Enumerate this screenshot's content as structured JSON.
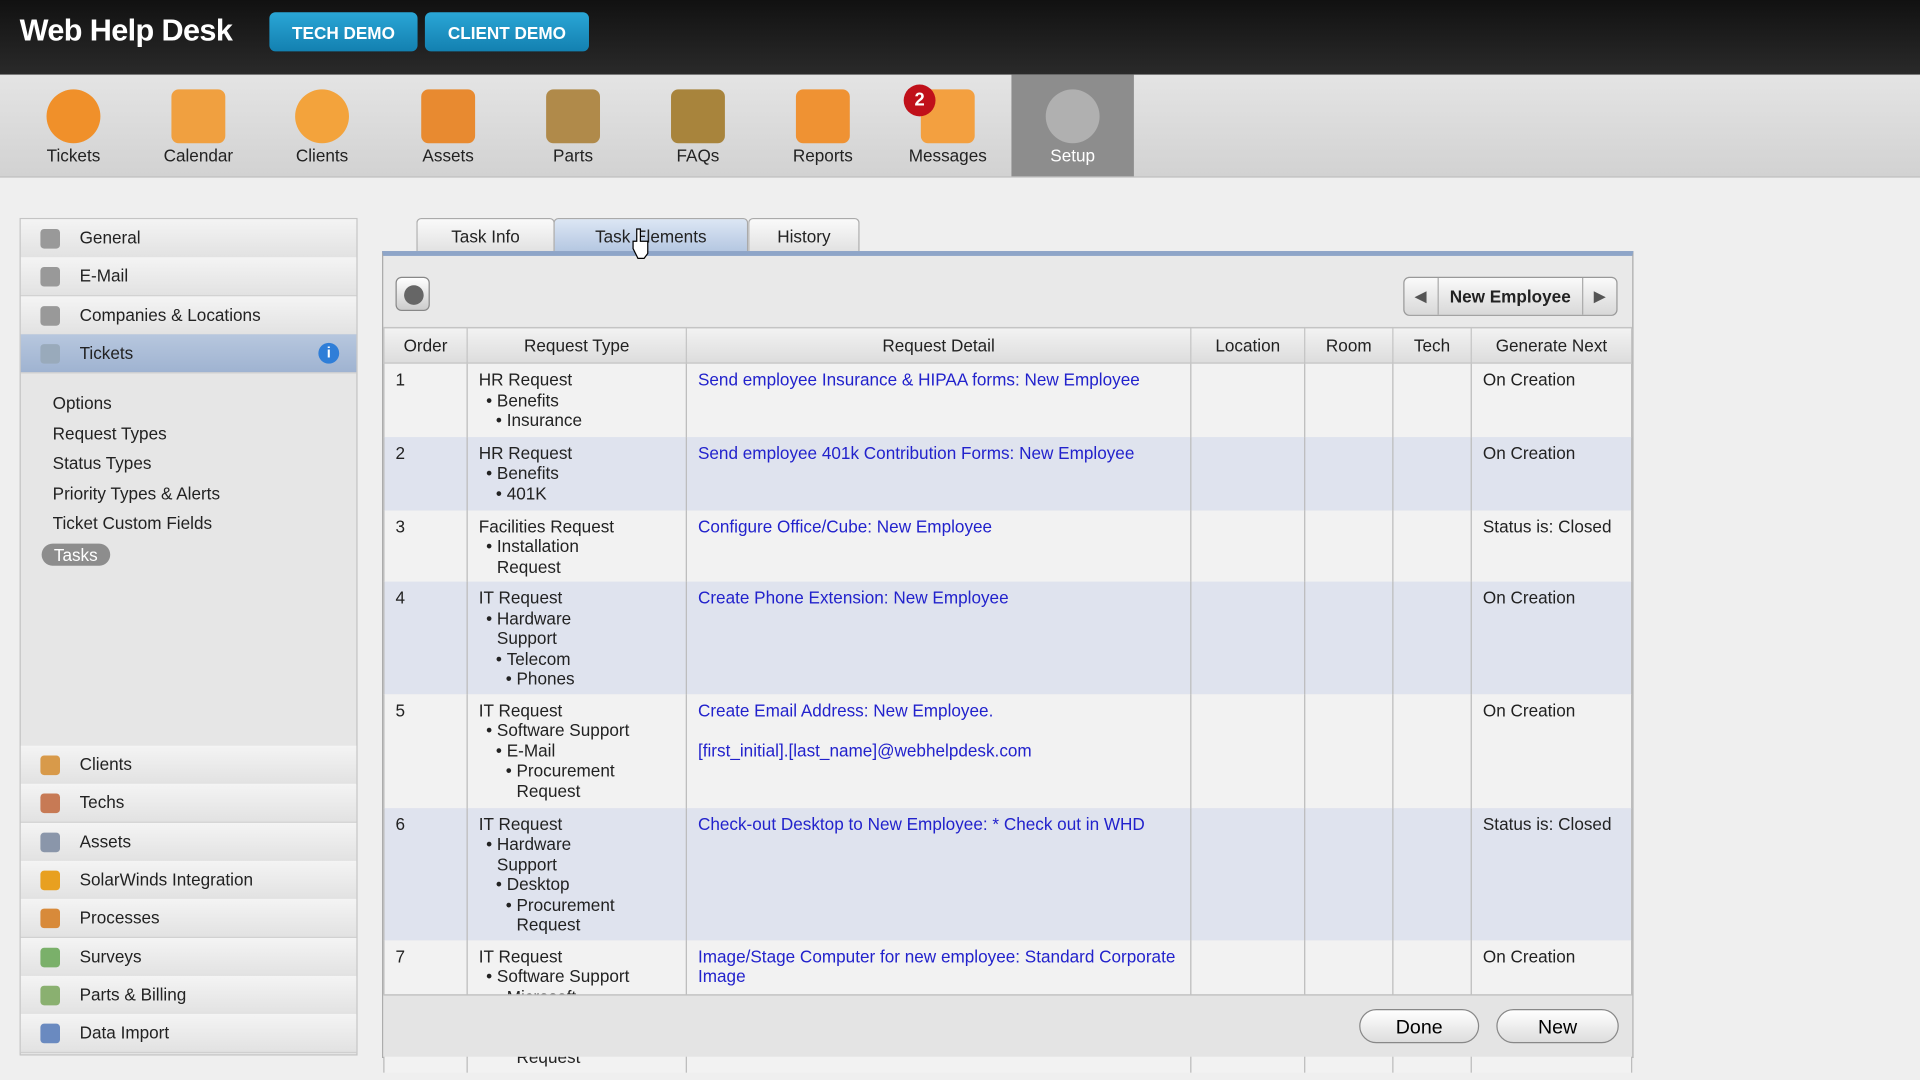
{
  "app": {
    "title": "Web Help Desk",
    "tech_demo": "TECH DEMO",
    "client_demo": "CLIENT DEMO"
  },
  "nav": [
    {
      "label": "Tickets",
      "icon": "lifebuoy-icon",
      "color": "#f0902a"
    },
    {
      "label": "Calendar",
      "icon": "calendar-icon",
      "color": "#f0a040"
    },
    {
      "label": "Clients",
      "icon": "person-icon",
      "color": "#f3a33c"
    },
    {
      "label": "Assets",
      "icon": "monitor-icon",
      "color": "#e88a30"
    },
    {
      "label": "Parts",
      "icon": "box-icon",
      "color": "#b08a4a"
    },
    {
      "label": "FAQs",
      "icon": "book-icon",
      "color": "#a8843c"
    },
    {
      "label": "Reports",
      "icon": "report-icon",
      "color": "#ef9233"
    },
    {
      "label": "Messages",
      "icon": "message-icon",
      "color": "#f3a040",
      "badge": "2"
    },
    {
      "label": "Setup",
      "icon": "gear-icon",
      "color": "#b0b0b0",
      "active": true
    }
  ],
  "sidebar": {
    "top": [
      {
        "label": "General",
        "icon": "gear-icon"
      },
      {
        "label": "E-Mail",
        "icon": "envelope-icon"
      },
      {
        "label": "Companies & Locations",
        "icon": "building-icon"
      },
      {
        "label": "Tickets",
        "icon": "tag-icon",
        "selected": true
      }
    ],
    "sub": [
      "Options",
      "Request Types",
      "Status Types",
      "Priority Types & Alerts",
      "Ticket Custom Fields",
      "Tasks"
    ],
    "sub_selected": "Tasks",
    "bottom": [
      {
        "label": "Clients",
        "icon": "clients-icon"
      },
      {
        "label": "Techs",
        "icon": "tech-icon"
      },
      {
        "label": "Assets",
        "icon": "assets-icon"
      },
      {
        "label": "SolarWinds Integration",
        "icon": "solarwinds-icon"
      },
      {
        "label": "Processes",
        "icon": "processes-icon"
      },
      {
        "label": "Surveys",
        "icon": "surveys-icon"
      },
      {
        "label": "Parts & Billing",
        "icon": "parts-billing-icon"
      },
      {
        "label": "Data Import",
        "icon": "data-import-icon"
      }
    ]
  },
  "tabs": [
    "Task Info",
    "Task Elements",
    "History"
  ],
  "active_tab": "Task Elements",
  "pager": {
    "label": "New Employee"
  },
  "table": {
    "columns": [
      "Order",
      "Request Type",
      "Request Detail",
      "Location",
      "Room",
      "Tech",
      "Generate Next"
    ],
    "rows": [
      {
        "order": "1",
        "type": [
          [
            0,
            "HR Request"
          ],
          [
            1,
            "Benefits"
          ],
          [
            2,
            "Insurance"
          ]
        ],
        "detail": [
          "Send employee Insurance & HIPAA forms: New Employee"
        ],
        "location": "",
        "room": "",
        "tech": "",
        "next": "On Creation"
      },
      {
        "order": "2",
        "type": [
          [
            0,
            "HR Request"
          ],
          [
            1,
            "Benefits"
          ],
          [
            2,
            "401K"
          ]
        ],
        "detail": [
          "Send employee 401k Contribution Forms: New Employee"
        ],
        "location": "",
        "room": "",
        "tech": "",
        "next": "On Creation"
      },
      {
        "order": "3",
        "type": [
          [
            0,
            "Facilities Request"
          ],
          [
            1,
            "Installation Request"
          ]
        ],
        "detail": [
          "Configure Office/Cube: New Employee"
        ],
        "location": "",
        "room": "",
        "tech": "",
        "next": "Status is: Closed"
      },
      {
        "order": "4",
        "type": [
          [
            0,
            "IT Request"
          ],
          [
            1,
            "Hardware Support"
          ],
          [
            2,
            "Telecom"
          ],
          [
            3,
            "Phones"
          ]
        ],
        "detail": [
          "Create Phone Extension: New Employee"
        ],
        "location": "",
        "room": "",
        "tech": "",
        "next": "On Creation"
      },
      {
        "order": "5",
        "type": [
          [
            0,
            "IT Request"
          ],
          [
            1,
            "Software Support"
          ],
          [
            2,
            "E-Mail"
          ],
          [
            3,
            "Procurement Request"
          ]
        ],
        "detail": [
          "Create Email Address: New Employee.",
          "",
          "[first_initial].[last_name]@webhelpdesk.com"
        ],
        "location": "",
        "room": "",
        "tech": "",
        "next": "On Creation"
      },
      {
        "order": "6",
        "type": [
          [
            0,
            "IT Request"
          ],
          [
            1,
            "Hardware Support"
          ],
          [
            2,
            "Desktop"
          ],
          [
            3,
            "Procurement Request"
          ]
        ],
        "detail": [
          "Check-out Desktop to New Employee: * Check out in WHD"
        ],
        "location": "",
        "room": "",
        "tech": "",
        "next": "Status is: Closed"
      },
      {
        "order": "7",
        "type": [
          [
            0,
            "IT Request"
          ],
          [
            1,
            "Software Support"
          ],
          [
            2,
            "Microsoft Windows"
          ],
          [
            3,
            "Procurement Request"
          ]
        ],
        "detail": [
          "Image/Stage Computer for new employee: Standard Corporate Image"
        ],
        "location": "",
        "room": "",
        "tech": "",
        "next": "On Creation"
      }
    ]
  },
  "footer": {
    "done": "Done",
    "new": "New"
  }
}
